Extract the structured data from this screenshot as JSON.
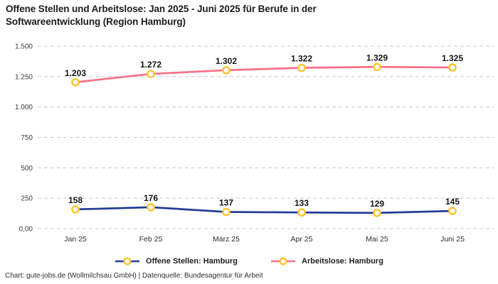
{
  "title": "Offene Stellen und Arbeitslose: Jan 2025 - Juni 2025 für Berufe in der Softwareentwicklung (Region Hamburg)",
  "footer": "Chart: gute-jobs.de (Wollmilchsau GmbH) | Datenquelle: Bundesagentur für Arbeit",
  "colors": {
    "grid": "#c8c8c8",
    "axis_text": "#3c3c3c",
    "xaxis_text": "#2e2e2e",
    "data_label_text": "#141414",
    "marker_stroke": "#fdc32e",
    "marker_fill": "#ffffff",
    "series_blue": "#233d97",
    "series_pink": "#f8718a"
  },
  "chart_data": {
    "type": "line",
    "categories": [
      "Jan 25",
      "Feb 25",
      "März 25",
      "Apr 25",
      "Mai 25",
      "Juni 25"
    ],
    "series": [
      {
        "name": "Offene Stellen: Hamburg",
        "color": "#233d97",
        "values": [
          158,
          176,
          137,
          133,
          129,
          145
        ]
      },
      {
        "name": "Arbeitslose: Hamburg",
        "color": "#f8718a",
        "values": [
          1203,
          1272,
          1302,
          1322,
          1329,
          1325
        ]
      }
    ],
    "ylim": [
      0,
      1500
    ],
    "yticks": [
      0,
      250,
      500,
      750,
      1000,
      1250,
      1500
    ],
    "ytick_labels": [
      "0,00",
      "250",
      "500",
      "750",
      "1.000",
      "1.250",
      "1.500"
    ],
    "grid": "dashed",
    "data_labels": true,
    "legend_position": "bottom",
    "marker": "circle-open-yellow"
  }
}
